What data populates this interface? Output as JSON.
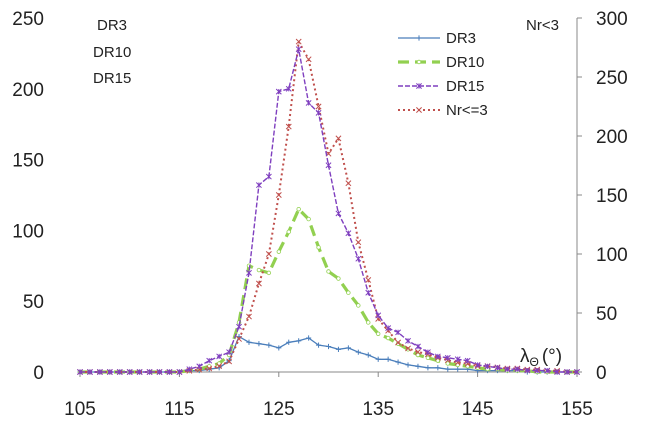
{
  "chart_data": {
    "type": "line",
    "title": "",
    "xlabel": "λ",
    "xlabel_sub": "Θ",
    "xlabel_unit": "(°)",
    "xlim": [
      105,
      155
    ],
    "xticks": [
      "105",
      "115",
      "125",
      "135",
      "145",
      "155"
    ],
    "ylim_left": [
      0,
      250
    ],
    "yticks_left": [
      "0",
      "50",
      "100",
      "150",
      "200",
      "250"
    ],
    "ylim_right": [
      0,
      300
    ],
    "yticks_right": [
      "0",
      "50",
      "100",
      "150",
      "200",
      "250",
      "300"
    ],
    "left_axis_labels": [
      "DR3",
      "DR10",
      "DR15"
    ],
    "right_axis_label": "Nr<3",
    "legend_position": "top-right",
    "grid": false,
    "series": [
      {
        "name": "DR3",
        "axis": "left",
        "color": "#4a7ebb",
        "marker": "plus",
        "x": [
          105,
          106,
          107,
          108,
          109,
          110,
          111,
          112,
          113,
          114,
          115,
          116,
          117,
          118,
          119,
          120,
          121,
          122,
          123,
          124,
          125,
          126,
          127,
          128,
          129,
          130,
          131,
          132,
          133,
          134,
          135,
          136,
          137,
          138,
          139,
          140,
          141,
          142,
          143,
          144,
          145,
          146,
          147,
          148,
          149,
          150,
          151,
          152,
          153,
          154,
          155
        ],
        "y": [
          0,
          0,
          0,
          0,
          0,
          0,
          0,
          0,
          0,
          0,
          0,
          1,
          1,
          2,
          3,
          8,
          25,
          21,
          20,
          19,
          17,
          21,
          22,
          24,
          19,
          18,
          16,
          17,
          14,
          12,
          9,
          9,
          7,
          5,
          4,
          3,
          3,
          2,
          2,
          2,
          1,
          1,
          1,
          1,
          1,
          0,
          0,
          0,
          0,
          0,
          0
        ]
      },
      {
        "name": "DR10",
        "axis": "left",
        "color": "#92d050",
        "marker": "circle",
        "x": [
          105,
          106,
          107,
          108,
          109,
          110,
          111,
          112,
          113,
          114,
          115,
          116,
          117,
          118,
          119,
          120,
          121,
          122,
          123,
          124,
          125,
          126,
          127,
          128,
          129,
          130,
          131,
          132,
          133,
          134,
          135,
          136,
          137,
          138,
          139,
          140,
          141,
          142,
          143,
          144,
          145,
          146,
          147,
          148,
          149,
          150,
          151,
          152,
          153,
          154,
          155
        ],
        "y": [
          0,
          0,
          0,
          0,
          0,
          0,
          0,
          0,
          0,
          0,
          0,
          1,
          2,
          4,
          6,
          12,
          35,
          75,
          72,
          70,
          85,
          99,
          115,
          108,
          88,
          71,
          66,
          56,
          47,
          35,
          27,
          24,
          20,
          16,
          12,
          10,
          8,
          6,
          5,
          4,
          3,
          2,
          2,
          1,
          1,
          1,
          0,
          0,
          0,
          0,
          0
        ]
      },
      {
        "name": "DR15",
        "axis": "left",
        "color": "#7f3fbf",
        "marker": "star",
        "x": [
          105,
          106,
          107,
          108,
          109,
          110,
          111,
          112,
          113,
          114,
          115,
          116,
          117,
          118,
          119,
          120,
          121,
          122,
          123,
          124,
          125,
          126,
          127,
          128,
          129,
          130,
          131,
          132,
          133,
          134,
          135,
          136,
          137,
          138,
          139,
          140,
          141,
          142,
          143,
          144,
          145,
          146,
          147,
          148,
          149,
          150,
          151,
          152,
          153,
          154,
          155
        ],
        "y": [
          0,
          0,
          0,
          0,
          0,
          0,
          0,
          0,
          0,
          0,
          0,
          2,
          4,
          8,
          11,
          14,
          32,
          70,
          132,
          138,
          198,
          200,
          228,
          190,
          183,
          146,
          112,
          98,
          80,
          56,
          40,
          31,
          28,
          22,
          18,
          14,
          11,
          10,
          9,
          8,
          5,
          4,
          3,
          2,
          2,
          1,
          1,
          1,
          0,
          0,
          0
        ]
      },
      {
        "name": "Nr<=3",
        "axis": "right",
        "color": "#c0504d",
        "marker": "x",
        "x": [
          105,
          106,
          107,
          108,
          109,
          110,
          111,
          112,
          113,
          114,
          115,
          116,
          117,
          118,
          119,
          120,
          121,
          122,
          123,
          124,
          125,
          126,
          127,
          128,
          129,
          130,
          131,
          132,
          133,
          134,
          135,
          136,
          137,
          138,
          139,
          140,
          141,
          142,
          143,
          144,
          145,
          146,
          147,
          148,
          149,
          150,
          151,
          152,
          153,
          154,
          155
        ],
        "y": [
          0,
          0,
          0,
          0,
          0,
          0,
          0,
          0,
          0,
          0,
          0,
          1,
          2,
          3,
          5,
          9,
          28,
          47,
          75,
          100,
          150,
          208,
          280,
          265,
          225,
          185,
          198,
          160,
          110,
          78,
          45,
          35,
          25,
          20,
          17,
          15,
          12,
          10,
          8,
          7,
          5,
          5,
          4,
          3,
          3,
          2,
          2,
          1,
          1,
          0,
          0
        ]
      }
    ]
  }
}
